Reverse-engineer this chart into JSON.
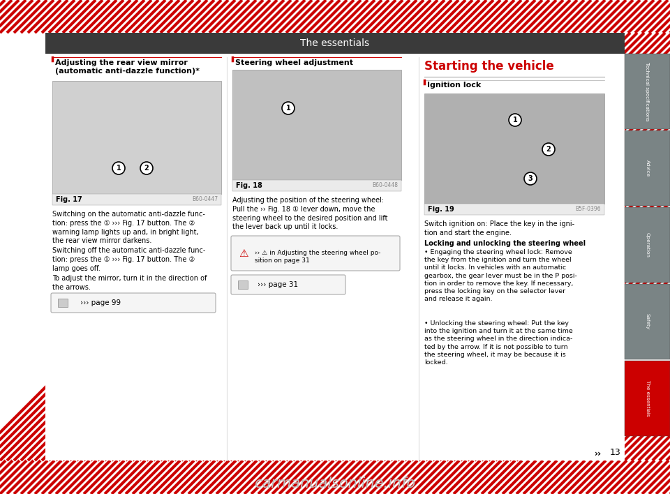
{
  "title": "The essentials",
  "title_bg": "#3a3a3a",
  "title_color": "#ffffff",
  "page_bg": "#ffffff",
  "red_color": "#cc0000",
  "dark_gray": "#7a8485",
  "tab_labels": [
    "Technical specifications",
    "Advice",
    "Operation",
    "Safety",
    "The essentials"
  ],
  "tab_active": 4,
  "page_number": "13",
  "section1_title": "Adjusting the rear view mirror\n(automatic anti-dazzle function)*",
  "section2_title": "Steering wheel adjustment",
  "section3_title": "Starting the vehicle",
  "section3_sub": "Ignition lock",
  "fig17_label": "Fig. 17",
  "fig18_label": "Fig. 18",
  "fig19_label": "Fig. 19",
  "fig17_code": "B60-0447",
  "fig18_code": "B60-0448",
  "fig19_code": "B5F-0396",
  "text1a": "Switching on the automatic anti-dazzle func-\ntion: press the ① ››› Fig. 17 button. The ②\nwarning lamp lights up and, in bright light,\nthe rear view mirror darkens.",
  "text1b": "Switching off the automatic anti-dazzle func-\ntion: press the ① ››› Fig. 17 button. The ②\nlamp goes off.",
  "text1c": "To adjust the mirror, turn it in the direction of\nthe arrows.",
  "text1d": "››› page 99",
  "text2a": "Adjusting the position of the steering wheel:\nPull the ›› Fig. 18 ① lever down, move the\nsteering wheel to the desired position and lift\nthe lever back up until it locks.",
  "text2b": "›› ⚠ in Adjusting the steering wheel po-\nsition on page 31",
  "text2c": "››› page 31",
  "text3a": "Switch ignition on: Place the key in the igni-\ntion and start the engine.",
  "text3b_title": "Locking and unlocking the steering wheel",
  "text3b": "• Engaging the steering wheel lock: Remove\nthe key from the ignition and turn the wheel\nuntil it locks. In vehicles with an automatic\ngearbox, the gear lever must be in the P posi-\ntion in order to remove the key. If necessary,\npress the locking key on the selector lever\nand release it again.",
  "text3c": "• Unlocking the steering wheel: Put the key\ninto the ignition and turn it at the same time\nas the steering wheel in the direction indica-\nted by the arrow. If it is not possible to turn\nthe steering wheel, it may be because it is\nlocked.",
  "arrow_right": "››"
}
